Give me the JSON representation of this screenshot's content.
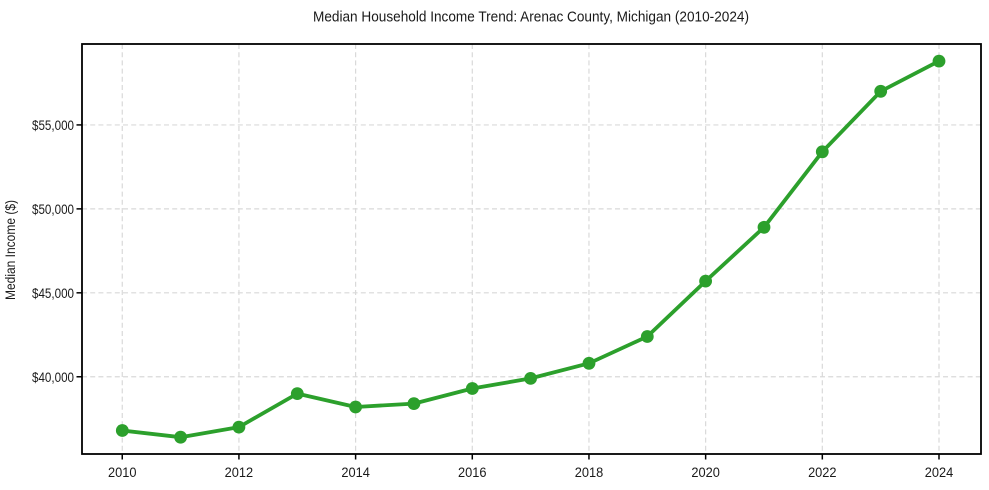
{
  "figure": {
    "background": "#ffffff"
  },
  "chart_data": {
    "type": "line",
    "title": "Median Household Income Trend: Arenac County, Michigan (2010-2024)",
    "xlabel": "",
    "ylabel": "Median Income ($)",
    "x": [
      2010,
      2011,
      2012,
      2013,
      2014,
      2015,
      2016,
      2017,
      2018,
      2019,
      2020,
      2021,
      2022,
      2023,
      2024
    ],
    "values": [
      36800,
      36400,
      37000,
      39000,
      38200,
      38400,
      39300,
      39900,
      40800,
      42400,
      45700,
      48900,
      53400,
      57000,
      58800
    ],
    "x_ticks": [
      2010,
      2012,
      2014,
      2016,
      2018,
      2020,
      2022,
      2024
    ],
    "x_tick_labels": [
      "2010",
      "2012",
      "2014",
      "2016",
      "2018",
      "2020",
      "2022",
      "2024"
    ],
    "y_ticks": [
      40000,
      45000,
      50000,
      55000
    ],
    "y_tick_labels": [
      "$40,000",
      "$45,000",
      "$50,000",
      "$55,000"
    ],
    "xlim": [
      2009.31,
      2024.72
    ],
    "ylim": [
      35400,
      59820
    ],
    "grid": true,
    "grid_style": "dashed",
    "legend": false,
    "line_color": "#2ca02c",
    "marker": "circle",
    "grid_color": "#d9d9d9",
    "spine_color": "#000000",
    "text_color": "#1a1a1a"
  }
}
